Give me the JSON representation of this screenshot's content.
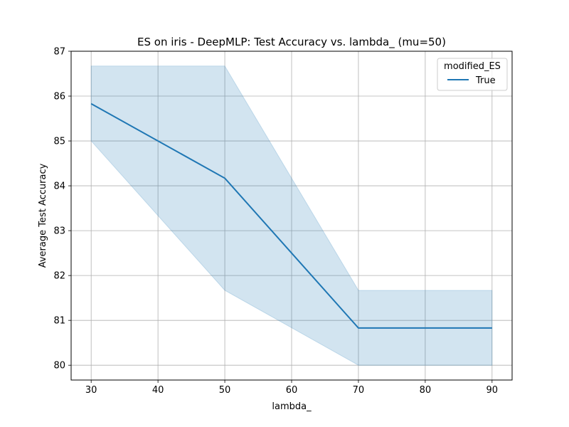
{
  "chart_data": {
    "type": "line",
    "title": "ES on iris - DeepMLP: Test Accuracy vs. lambda_ (mu=50)",
    "xlabel": "lambda_",
    "ylabel": "Average Test Accuracy",
    "xlim": [
      27,
      93
    ],
    "ylim": [
      79.67,
      87.0
    ],
    "xticks": [
      30,
      40,
      50,
      60,
      70,
      80,
      90
    ],
    "yticks": [
      80,
      81,
      82,
      83,
      84,
      85,
      86,
      87
    ],
    "grid": true,
    "legend": {
      "title": "modified_ES",
      "placement": "top-right"
    },
    "series": [
      {
        "name": "True",
        "color": "#1f77b4",
        "x": [
          30,
          50,
          70,
          90
        ],
        "y": [
          85.83,
          84.17,
          80.83,
          80.83
        ],
        "ci_lower": [
          85.0,
          81.67,
          80.0,
          80.0
        ],
        "ci_upper": [
          86.67,
          86.67,
          81.67,
          81.67
        ]
      }
    ]
  }
}
